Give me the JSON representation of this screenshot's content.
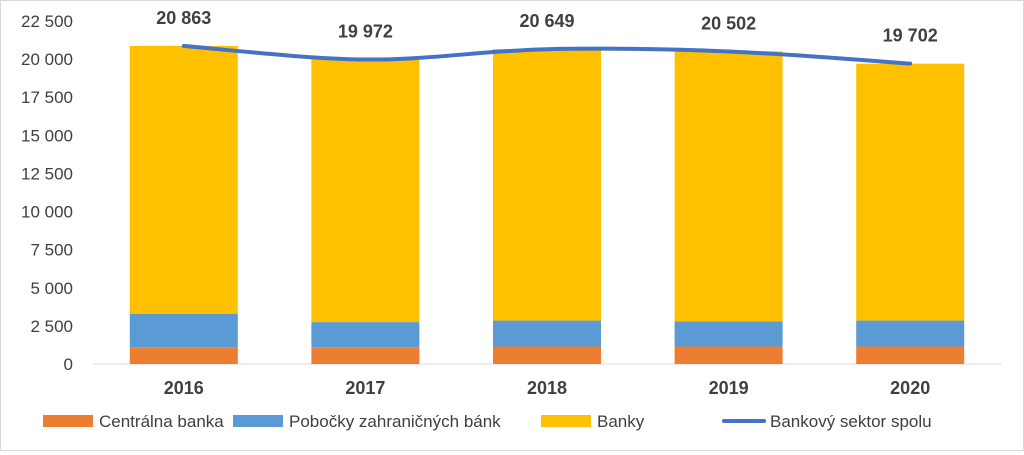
{
  "chart_data": {
    "type": "bar",
    "stacked": true,
    "categories": [
      "2016",
      "2017",
      "2018",
      "2019",
      "2020"
    ],
    "series": [
      {
        "name": "Centrálna banka",
        "kind": "bar",
        "color": "#ED7D31",
        "values": [
          1100,
          1100,
          1150,
          1150,
          1150
        ]
      },
      {
        "name": "Pobočky zahraničných bánk",
        "kind": "bar",
        "color": "#5B9BD5",
        "values": [
          2200,
          1650,
          1700,
          1650,
          1700
        ]
      },
      {
        "name": "Banky",
        "kind": "bar",
        "color": "#FFC000",
        "values": [
          17563,
          17222,
          17799,
          17702,
          16852
        ]
      },
      {
        "name": "Bankový sektor spolu",
        "kind": "line",
        "color": "#4472C4",
        "values": [
          20863,
          19972,
          20649,
          20502,
          19702
        ]
      }
    ],
    "data_labels": [
      "20 863",
      "19 972",
      "20 649",
      "20 502",
      "19 702"
    ],
    "yticks": [
      "0",
      "2 500",
      "5 000",
      "7 500",
      "10 000",
      "12 500",
      "15 000",
      "17 500",
      "20 000",
      "22 500"
    ],
    "ylim": [
      0,
      22500
    ],
    "legend_position": "bottom",
    "grid": false
  }
}
